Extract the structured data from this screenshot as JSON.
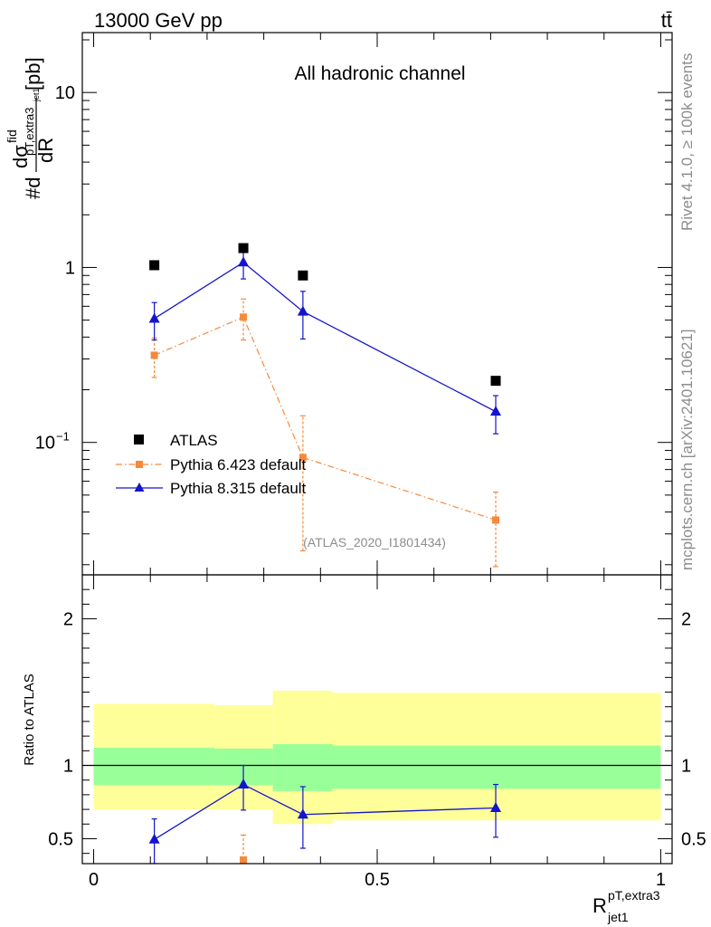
{
  "header": {
    "left": "13000 GeV pp",
    "right": "tt̄"
  },
  "side": {
    "rivet": "Rivet 4.1.0, ≥ 100k events",
    "mcplots": "mcplots.cern.ch [arXiv:2401.10621]"
  },
  "chart_data": [
    {
      "type": "line",
      "title": "All hadronic channel",
      "analysis_label": "(ATLAS_2020_I1801434)",
      "ylabel_main": "#d",
      "ylabel_sub": "dσ",
      "ylabel_sup": "fid",
      "ylabel_index": "pT,extra3",
      "ylabel_index2": "jet1",
      "ylabel_den": "dR",
      "ylabel_unit": "[pb]",
      "yscale": "log",
      "ylim": [
        0.0175,
        22
      ],
      "xlim": [
        -0.02,
        1.02
      ],
      "yticks": [
        {
          "value": 10,
          "label": "10"
        },
        {
          "value": 1,
          "label": "1"
        },
        {
          "value": 0.1,
          "label": "10",
          "exp": "−1"
        }
      ],
      "legend": {
        "position": "bottom-left",
        "entries": [
          "ATLAS",
          "Pythia 6.423 default",
          "Pythia 8.315 default"
        ]
      },
      "series": [
        {
          "name": "ATLAS",
          "color": "#000000",
          "marker": "square",
          "x": [
            0.107,
            0.264,
            0.369,
            0.709
          ],
          "y": [
            1.03,
            1.29,
            0.9,
            0.225
          ]
        },
        {
          "name": "Pythia 6.423 default",
          "color": "#f58a3c",
          "marker": "square",
          "linestyle": "dashdot",
          "x": [
            0.107,
            0.264,
            0.369,
            0.709
          ],
          "y": [
            0.315,
            0.52,
            0.082,
            0.036
          ],
          "err_low": [
            0.235,
            0.385,
            0.024,
            0.0195
          ],
          "err_high": [
            0.395,
            0.66,
            0.142,
            0.052
          ]
        },
        {
          "name": "Pythia 8.315 default",
          "color": "#1414cc",
          "marker": "triangle",
          "linestyle": "solid",
          "x": [
            0.107,
            0.264,
            0.369,
            0.709
          ],
          "y": [
            0.51,
            1.07,
            0.56,
            0.15
          ],
          "err_low": [
            0.385,
            0.86,
            0.39,
            0.112
          ],
          "err_high": [
            0.63,
            1.3,
            0.73,
            0.185
          ]
        }
      ]
    },
    {
      "type": "line",
      "ylabel": "Ratio to ATLAS",
      "xlabel_main": "R",
      "xlabel_sup": "pT,extra3",
      "xlabel_sub": "jet1",
      "ylim": [
        0.33,
        2.3
      ],
      "xlim": [
        -0.02,
        1.02
      ],
      "xticks": [
        {
          "value": 0,
          "label": "0"
        },
        {
          "value": 0.5,
          "label": "0.5"
        },
        {
          "value": 1,
          "label": "1"
        }
      ],
      "yticks": [
        {
          "value": 2,
          "label": "2"
        },
        {
          "value": 1,
          "label": "1"
        },
        {
          "value": 0.5,
          "label": "0.5"
        }
      ],
      "bands": [
        {
          "x0": 0.0,
          "x1": 0.213,
          "yellow_lo": 0.7,
          "yellow_hi": 1.42,
          "green_lo": 0.865,
          "green_hi": 1.12
        },
        {
          "x0": 0.213,
          "x1": 0.316,
          "yellow_lo": 0.7,
          "yellow_hi": 1.41,
          "green_lo": 0.865,
          "green_hi": 1.115
        },
        {
          "x0": 0.316,
          "x1": 0.421,
          "yellow_lo": 0.6,
          "yellow_hi": 1.51,
          "green_lo": 0.825,
          "green_hi": 1.145
        },
        {
          "x0": 0.421,
          "x1": 1.0,
          "yellow_lo": 0.625,
          "yellow_hi": 1.495,
          "green_lo": 0.84,
          "green_hi": 1.135
        }
      ],
      "series": [
        {
          "name": "Pythia 6.423 default",
          "color": "#f58a3c",
          "marker": "square",
          "x": [
            0.264
          ],
          "y": [
            0.355
          ],
          "err_low": [
            0.33
          ],
          "err_high": [
            0.525
          ]
        },
        {
          "name": "Pythia 8.315 default",
          "color": "#1414cc",
          "marker": "triangle",
          "x": [
            0.107,
            0.264,
            0.369,
            0.709
          ],
          "y": [
            0.495,
            0.87,
            0.665,
            0.71
          ],
          "err_low": [
            0.33,
            0.695,
            0.435,
            0.51
          ],
          "err_high": [
            0.635,
            1.0,
            0.855,
            0.87
          ]
        }
      ]
    }
  ]
}
